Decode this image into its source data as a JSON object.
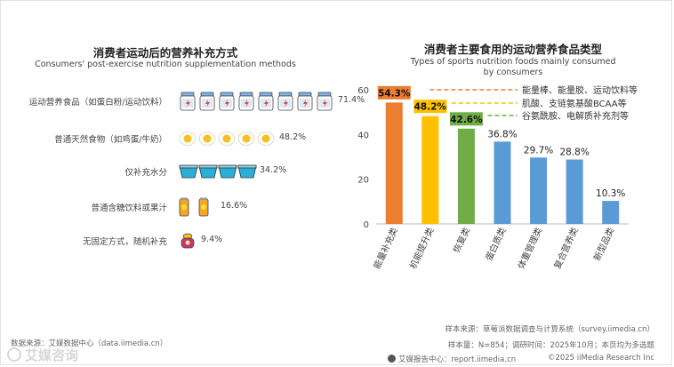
{
  "left": {
    "title": "消费者运动后的营养补充方式",
    "subtitle": "Consumers' post-exercise nutrition supplementation methods",
    "rows": [
      {
        "label": "运动营养食品（如蛋白粉/运动饮料）",
        "value": "71.4%",
        "icon": "protein-tub-icon",
        "count": 8
      },
      {
        "label": "普通天然食物（如鸡蛋/牛奶）",
        "value": "48.2%",
        "icon": "egg-icon",
        "count": 5
      },
      {
        "label": "仅补充水分",
        "value": "34.2%",
        "icon": "water-cup-icon",
        "count": 4
      },
      {
        "label": "普通含糖饮料或果汁",
        "value": "16.6%",
        "icon": "juice-can-icon",
        "count": 2
      },
      {
        "label": "无固定方式，随机补充",
        "value": "9.4%",
        "icon": "snack-pot-icon",
        "count": 1
      }
    ]
  },
  "right": {
    "title": "消费者主要食用的运动营养食品类型",
    "subtitle_line1": "Types of sports nutrition foods mainly consumed",
    "subtitle_line2": "by consumers"
  },
  "chart_data": {
    "type": "bar",
    "title": "消费者主要食用的运动营养食品类型",
    "subtitle": "Types of sports nutrition foods mainly consumed by consumers",
    "categories": [
      "能量补充类",
      "机能提升类",
      "恢复类",
      "蛋白质类",
      "体重管理类",
      "复合营养类",
      "新型品类"
    ],
    "values": [
      54.3,
      48.2,
      42.6,
      36.8,
      29.7,
      28.8,
      10.3
    ],
    "value_labels": [
      "54.3%",
      "48.2%",
      "42.6%",
      "36.8%",
      "29.7%",
      "28.8%",
      "10.3%"
    ],
    "colors": [
      "#ED7D31",
      "#FFC000",
      "#70AD47",
      "#5B9BD5",
      "#5B9BD5",
      "#5B9BD5",
      "#5B9BD5"
    ],
    "ylim": [
      0,
      60
    ],
    "yticks": [
      0,
      20,
      40,
      60
    ],
    "grid": false,
    "annotations": [
      {
        "bar": 0,
        "text": "能量棒、能量胶、运动饮料等",
        "color": "#ED7D31"
      },
      {
        "bar": 1,
        "text": "肌酸、支链氨基酸BCAA等",
        "color": "#FFC000"
      },
      {
        "bar": 2,
        "text": "谷氨酰胺、电解质补充剂等",
        "color": "#70AD47"
      }
    ]
  },
  "footer": {
    "source_left": "数据来源：艾媒数据中心（data.iimedia.cn）",
    "sample_source": "样本来源：草莓派数据调查与计算系统（survey.iimedia.cn）",
    "sample_size": "样本量：N=854；调研时间：2025年10月；本页均为多选题",
    "report_center": "艾媒报告中心：report.iimedia.cn",
    "copyright": "©2025  iiMedia Research  Inc",
    "watermark": "艾媒咨询"
  }
}
